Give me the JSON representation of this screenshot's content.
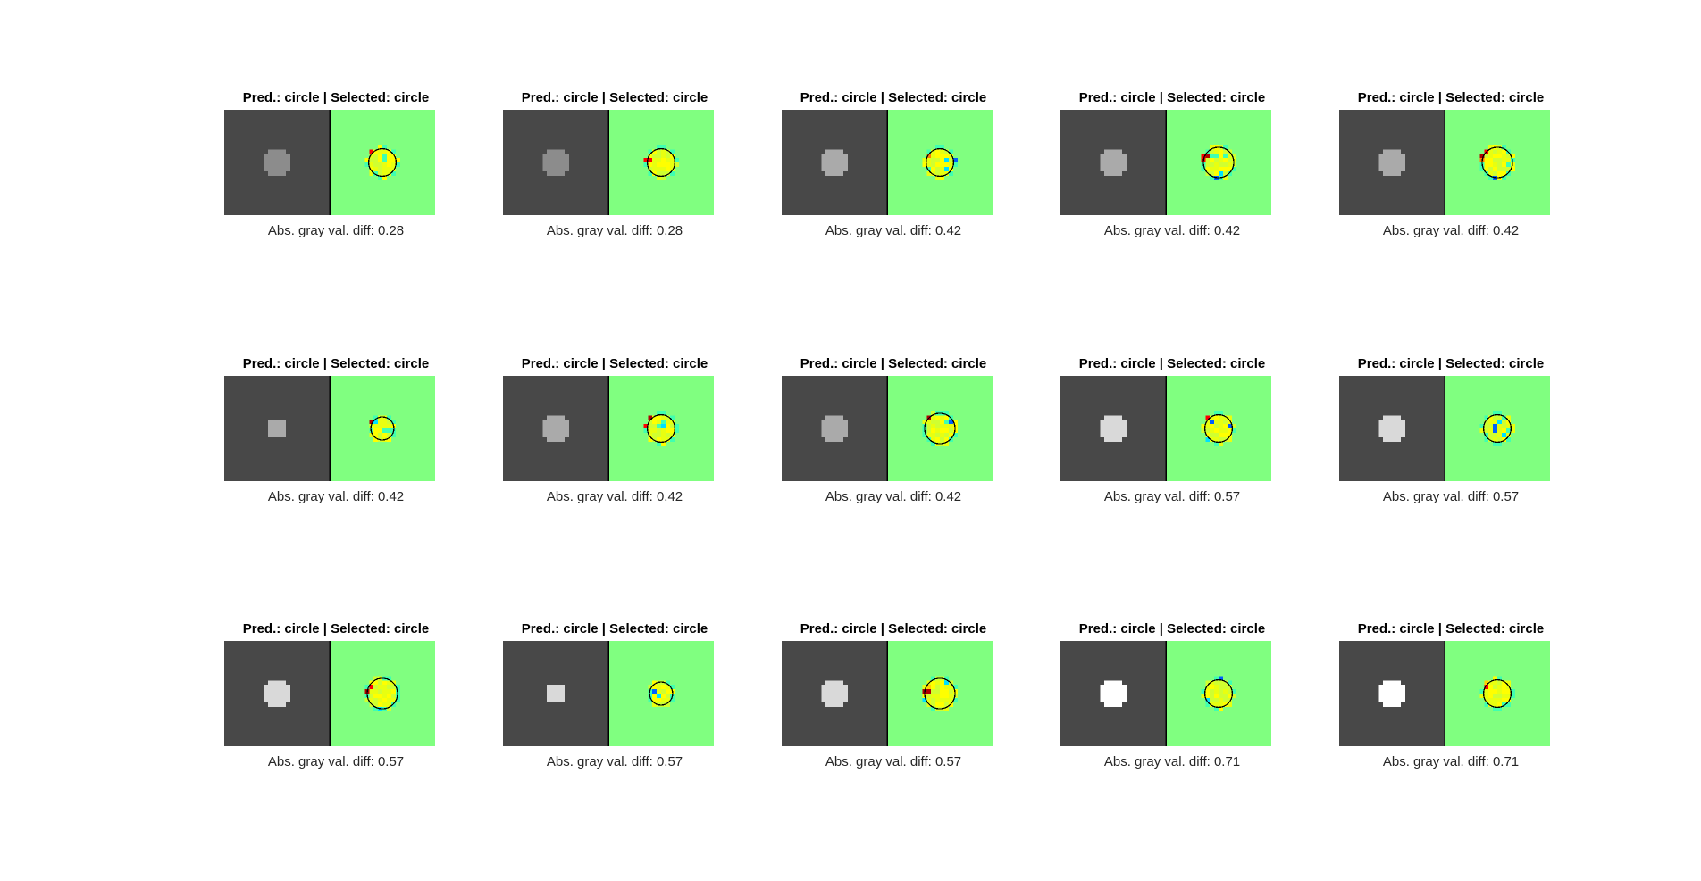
{
  "figure": {
    "panels": [
      {
        "title": "Pred.: circle | Selected: circle",
        "caption": "Abs. gray val. diff: 0.28",
        "blob_gray": "#8c8c8c",
        "blob_size": "medium"
      },
      {
        "title": "Pred.: circle | Selected: circle",
        "caption": "Abs. gray val. diff: 0.28",
        "blob_gray": "#8c8c8c",
        "blob_size": "medium"
      },
      {
        "title": "Pred.: circle | Selected: circle",
        "caption": "Abs. gray val. diff: 0.42",
        "blob_gray": "#aaaaaa",
        "blob_size": "medium"
      },
      {
        "title": "Pred.: circle | Selected: circle",
        "caption": "Abs. gray val. diff: 0.42",
        "blob_gray": "#aaaaaa",
        "blob_size": "large"
      },
      {
        "title": "Pred.: circle | Selected: circle",
        "caption": "Abs. gray val. diff: 0.42",
        "blob_gray": "#aaaaaa",
        "blob_size": "large"
      },
      {
        "title": "Pred.: circle | Selected: circle",
        "caption": "Abs. gray val. diff: 0.42",
        "blob_gray": "#aaaaaa",
        "blob_size": "small"
      },
      {
        "title": "Pred.: circle | Selected: circle",
        "caption": "Abs. gray val. diff: 0.42",
        "blob_gray": "#aaaaaa",
        "blob_size": "medium"
      },
      {
        "title": "Pred.: circle | Selected: circle",
        "caption": "Abs. gray val. diff: 0.42",
        "blob_gray": "#aaaaaa",
        "blob_size": "large"
      },
      {
        "title": "Pred.: circle | Selected: circle",
        "caption": "Abs. gray val. diff: 0.57",
        "blob_gray": "#d9d9d9",
        "blob_size": "medium"
      },
      {
        "title": "Pred.: circle | Selected: circle",
        "caption": "Abs. gray val. diff: 0.57",
        "blob_gray": "#d9d9d9",
        "blob_size": "medium"
      },
      {
        "title": "Pred.: circle | Selected: circle",
        "caption": "Abs. gray val. diff: 0.57",
        "blob_gray": "#d9d9d9",
        "blob_size": "large"
      },
      {
        "title": "Pred.: circle | Selected: circle",
        "caption": "Abs. gray val. diff: 0.57",
        "blob_gray": "#d9d9d9",
        "blob_size": "small"
      },
      {
        "title": "Pred.: circle | Selected: circle",
        "caption": "Abs. gray val. diff: 0.57",
        "blob_gray": "#d9d9d9",
        "blob_size": "large"
      },
      {
        "title": "Pred.: circle | Selected: circle",
        "caption": "Abs. gray val. diff: 0.71",
        "blob_gray": "#ffffff",
        "blob_size": "medium"
      },
      {
        "title": "Pred.: circle | Selected: circle",
        "caption": "Abs. gray val. diff: 0.71",
        "blob_gray": "#ffffff",
        "blob_size": "medium"
      }
    ],
    "colors": {
      "background_gray": "#484848",
      "heatmap_background": "#80ff80",
      "contour": "#000000"
    }
  }
}
